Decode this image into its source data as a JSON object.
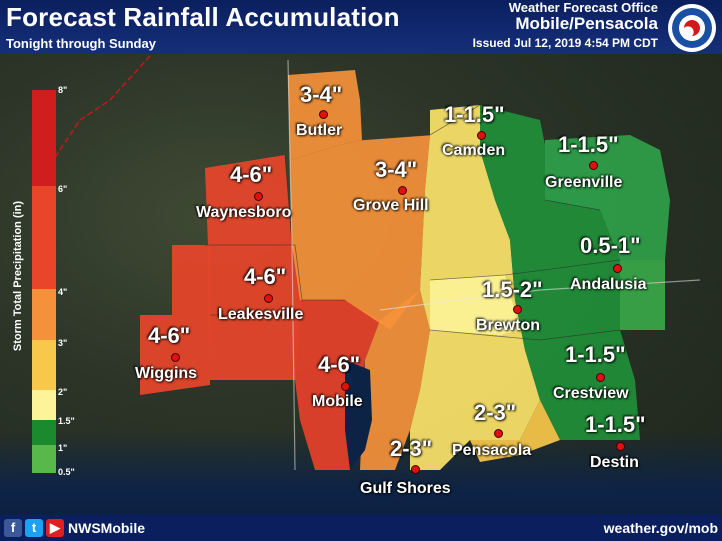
{
  "header": {
    "title": "Forecast Rainfall Accumulation",
    "subtitle": "Tonight through Sunday",
    "office_line1": "Weather Forecast Office",
    "office_line2": "Mobile/Pensacola",
    "issued": "Issued Jul 12, 2019 4:54 PM CDT"
  },
  "footer": {
    "handle": "NWSMobile",
    "website": "weather.gov/mob",
    "icons": [
      "facebook-icon",
      "twitter-icon",
      "youtube-icon"
    ]
  },
  "legend": {
    "title": "Storm Total Precipitation (in)",
    "ticks": [
      "8\"",
      "6\"",
      "4\"",
      "3\"",
      "2\"",
      "1.5\"",
      "1\"",
      "0.5\""
    ],
    "colors": {
      "8": "#d01d1d",
      "6": "#e8452a",
      "4": "#f5913a",
      "3": "#f8c84a",
      "2": "#fdf49a",
      "1.5": "#1b8a2f",
      "1": "#2ea14a",
      "0.5": "#58b94a"
    }
  },
  "locations": [
    {
      "city": "Butler",
      "amount": "3-4\""
    },
    {
      "city": "Camden",
      "amount": "1-1.5\""
    },
    {
      "city": "Greenville",
      "amount": "1-1.5\""
    },
    {
      "city": "Waynesboro",
      "amount": "4-6\""
    },
    {
      "city": "Grove Hill",
      "amount": "3-4\""
    },
    {
      "city": "Andalusia",
      "amount": "0.5-1\""
    },
    {
      "city": "Leakesville",
      "amount": "4-6\""
    },
    {
      "city": "Brewton",
      "amount": "1.5-2\""
    },
    {
      "city": "Wiggins",
      "amount": "4-6\""
    },
    {
      "city": "Mobile",
      "amount": "4-6\""
    },
    {
      "city": "Crestview",
      "amount": "1-1.5\""
    },
    {
      "city": "Pensacola",
      "amount": "2-3\""
    },
    {
      "city": "Destin",
      "amount": "1-1.5\""
    },
    {
      "city": "Gulf Shores",
      "amount": "2-3\""
    }
  ]
}
